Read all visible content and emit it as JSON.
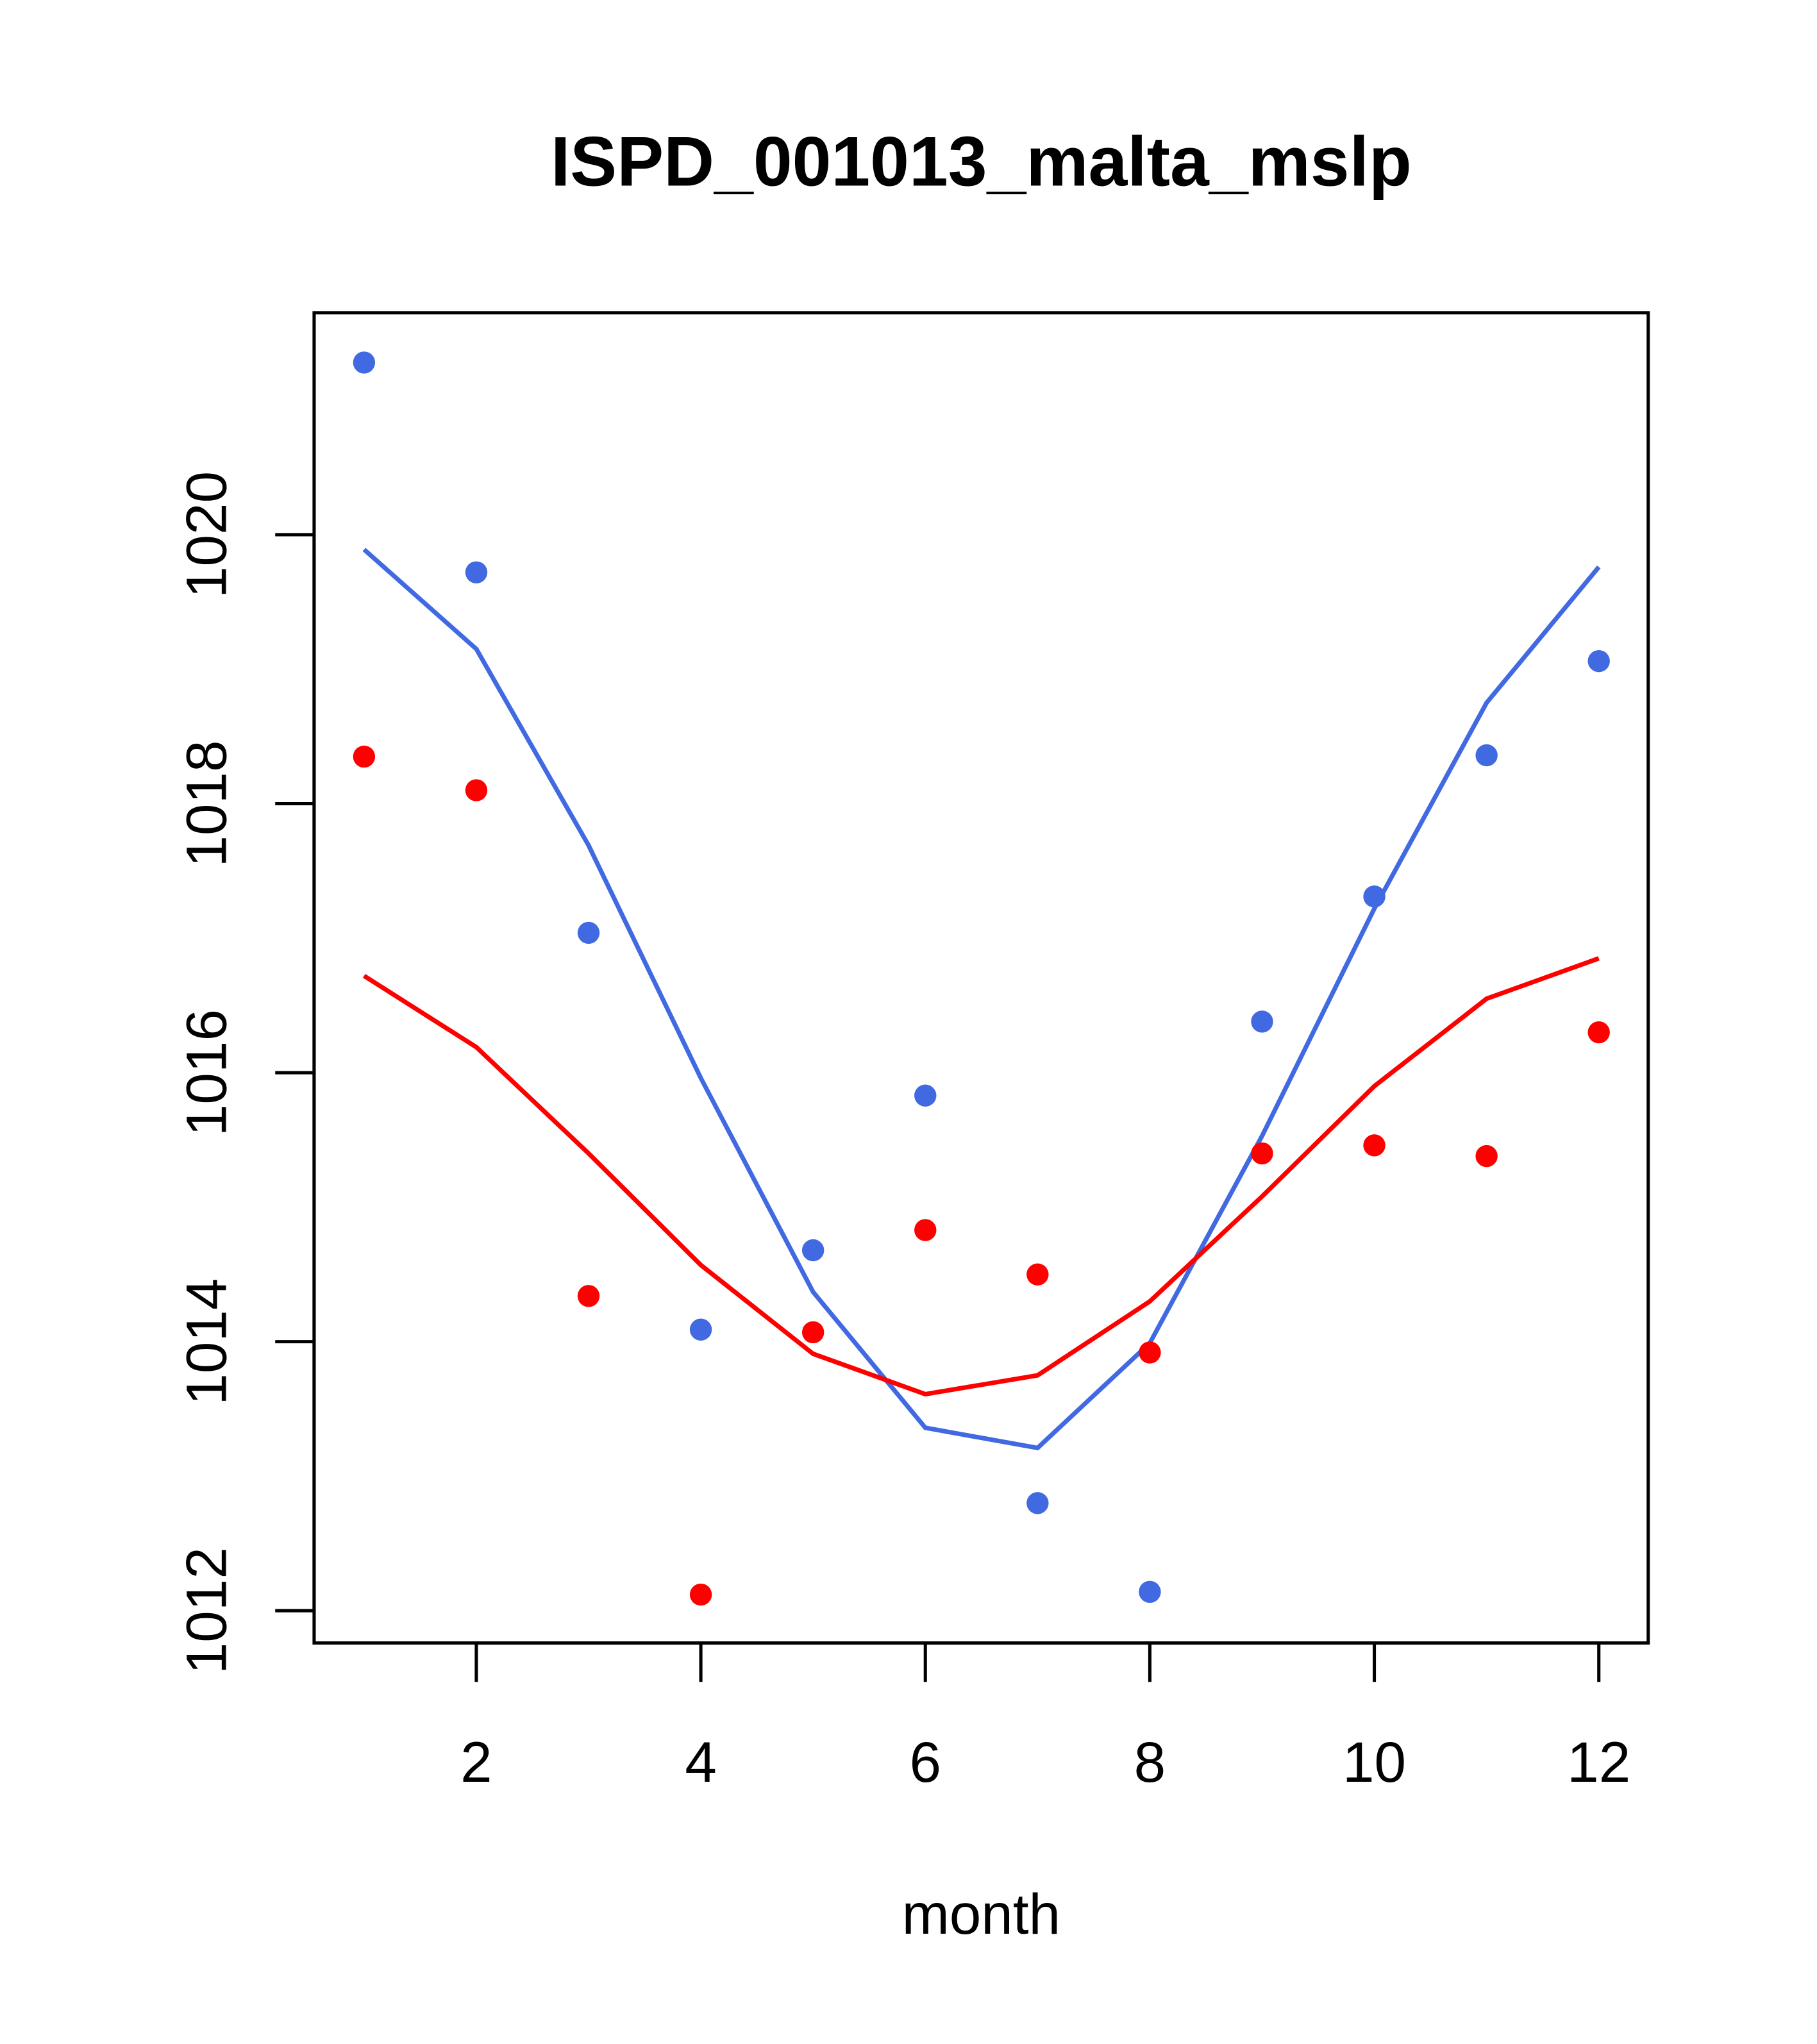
{
  "chart_data": {
    "type": "scatter",
    "title": "ISPD_001013_malta_mslp",
    "xlabel": "month",
    "ylabel": "",
    "xlim": [
      0.555,
      12.44
    ],
    "ylim": [
      1011.76,
      1021.65
    ],
    "xticks": [
      2,
      4,
      6,
      8,
      10,
      12
    ],
    "yticks": [
      1012,
      1014,
      1016,
      1018,
      1020
    ],
    "grid": false,
    "x": [
      1,
      2,
      3,
      4,
      5,
      6,
      7,
      8,
      9,
      10,
      11,
      12
    ],
    "series": [
      {
        "name": "blue points",
        "kind": "points",
        "color": "#4169E1",
        "values": [
          1021.28,
          1019.72,
          1017.04,
          1014.09,
          1014.68,
          1015.83,
          1012.8,
          1012.14,
          1016.38,
          1017.31,
          1018.36,
          1019.06
        ]
      },
      {
        "name": "red points",
        "kind": "points",
        "color": "#FF0000",
        "values": [
          1018.35,
          1018.1,
          1014.34,
          1012.12,
          1014.07,
          1014.83,
          1014.5,
          1013.92,
          1015.4,
          1015.46,
          1015.38,
          1016.3
        ]
      },
      {
        "name": "blue line",
        "kind": "line",
        "color": "#4169E1",
        "values": [
          1019.89,
          1019.15,
          1017.69,
          1015.96,
          1014.37,
          1013.36,
          1013.21,
          1013.99,
          1015.53,
          1017.22,
          1018.75,
          1019.76
        ]
      },
      {
        "name": "red line",
        "kind": "line",
        "color": "#FF0000",
        "values": [
          1016.72,
          1016.19,
          1015.4,
          1014.57,
          1013.91,
          1013.61,
          1013.75,
          1014.3,
          1015.08,
          1015.9,
          1016.55,
          1016.85
        ]
      }
    ]
  }
}
